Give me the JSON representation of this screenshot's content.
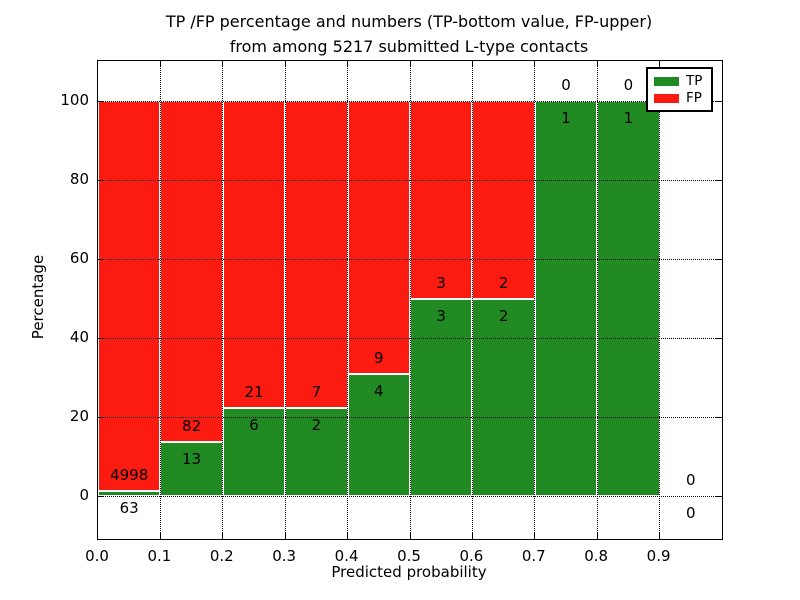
{
  "figure": {
    "title_line1": "TP /FP percentage and numbers (TP-bottom value, FP-upper)",
    "title_line2": "from among 5217 submitted L-type contacts",
    "xlabel": "Predicted probability",
    "ylabel": "Percentage"
  },
  "legend": {
    "position": "upper right",
    "items": [
      {
        "label": "TP",
        "color": "#228a22"
      },
      {
        "label": "FP",
        "color": "#fb1b10"
      }
    ]
  },
  "chart_data": {
    "type": "bar",
    "stacked": true,
    "title": "TP /FP percentage and numbers (TP-bottom value, FP-upper) from among 5217 submitted L-type contacts",
    "xlabel": "Predicted probability",
    "ylabel": "Percentage",
    "total_submitted": 5217,
    "grid": true,
    "grid_linestyle": "dotted",
    "xlim": [
      0.0,
      1.0
    ],
    "ylim": [
      0,
      100
    ],
    "x_ticks": [
      "0.0",
      "0.1",
      "0.2",
      "0.3",
      "0.4",
      "0.5",
      "0.6",
      "0.7",
      "0.8",
      "0.9"
    ],
    "y_ticks": [
      0,
      20,
      40,
      60,
      80,
      100
    ],
    "colors": {
      "tp": "#228a22",
      "fp": "#fb1b10",
      "bar_edge": "#ffffff"
    },
    "legend_position": "upper right",
    "bins": [
      {
        "range": [
          0.0,
          0.1
        ],
        "tp_count": 63,
        "fp_count": 4998,
        "tp_pct": 1.2,
        "fp_pct": 98.8
      },
      {
        "range": [
          0.1,
          0.2
        ],
        "tp_count": 13,
        "fp_count": 82,
        "tp_pct": 13.7,
        "fp_pct": 86.3
      },
      {
        "range": [
          0.2,
          0.3
        ],
        "tp_count": 6,
        "fp_count": 21,
        "tp_pct": 22.2,
        "fp_pct": 77.8
      },
      {
        "range": [
          0.3,
          0.4
        ],
        "tp_count": 2,
        "fp_count": 7,
        "tp_pct": 22.2,
        "fp_pct": 77.8
      },
      {
        "range": [
          0.4,
          0.5
        ],
        "tp_count": 4,
        "fp_count": 9,
        "tp_pct": 30.8,
        "fp_pct": 69.2
      },
      {
        "range": [
          0.5,
          0.6
        ],
        "tp_count": 3,
        "fp_count": 3,
        "tp_pct": 50.0,
        "fp_pct": 50.0
      },
      {
        "range": [
          0.6,
          0.7
        ],
        "tp_count": 2,
        "fp_count": 2,
        "tp_pct": 50.0,
        "fp_pct": 50.0
      },
      {
        "range": [
          0.7,
          0.8
        ],
        "tp_count": 1,
        "fp_count": 0,
        "tp_pct": 100.0,
        "fp_pct": 0.0
      },
      {
        "range": [
          0.8,
          0.9
        ],
        "tp_count": 1,
        "fp_count": 0,
        "tp_pct": 100.0,
        "fp_pct": 0.0
      },
      {
        "range": [
          0.9,
          1.0
        ],
        "tp_count": 0,
        "fp_count": 0,
        "tp_pct": null,
        "fp_pct": null
      }
    ]
  }
}
